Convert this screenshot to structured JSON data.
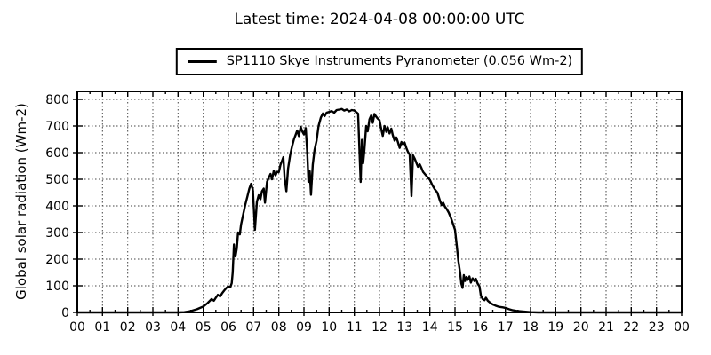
{
  "title": "Latest time: 2024-04-08 00:00:00 UTC",
  "legend": {
    "series_label": "SP1110 Skye Instruments Pyranometer (0.056 Wm-2)",
    "line_color": "#000000"
  },
  "axes": {
    "ylabel": "Global solar radiation (Wm-2)",
    "x_tick_labels": [
      "00",
      "01",
      "02",
      "03",
      "04",
      "05",
      "06",
      "07",
      "08",
      "09",
      "10",
      "11",
      "12",
      "13",
      "14",
      "15",
      "16",
      "17",
      "18",
      "19",
      "20",
      "21",
      "22",
      "23",
      "00"
    ],
    "y_tick_labels": [
      "0",
      "100",
      "200",
      "300",
      "400",
      "500",
      "600",
      "700",
      "800"
    ]
  },
  "chart_data": {
    "type": "line",
    "title": "Latest time: 2024-04-08 00:00:00 UTC",
    "xlabel": "",
    "ylabel": "Global solar radiation (Wm-2)",
    "xlim": [
      0,
      24
    ],
    "ylim": [
      0,
      830
    ],
    "x_unit": "hour (UTC)",
    "grid": "dotted",
    "legend_position": "top-center",
    "frame_color": "#000000",
    "grid_color": "#444444",
    "series": [
      {
        "name": "SP1110 Skye Instruments Pyranometer (0.056 Wm-2)",
        "color": "#000000",
        "linewidth": 2.4,
        "latest_value_wm2": 0.056,
        "points": [
          [
            0,
            0
          ],
          [
            0.5,
            0
          ],
          [
            1,
            0
          ],
          [
            1.5,
            0
          ],
          [
            2,
            0
          ],
          [
            2.5,
            0
          ],
          [
            3,
            0
          ],
          [
            3.5,
            0
          ],
          [
            4,
            0
          ],
          [
            4.25,
            1
          ],
          [
            4.5,
            5
          ],
          [
            4.75,
            12
          ],
          [
            5,
            22
          ],
          [
            5.17,
            35
          ],
          [
            5.33,
            50
          ],
          [
            5.42,
            44
          ],
          [
            5.5,
            55
          ],
          [
            5.58,
            66
          ],
          [
            5.67,
            60
          ],
          [
            5.75,
            72
          ],
          [
            5.83,
            82
          ],
          [
            5.92,
            92
          ],
          [
            6,
            97
          ],
          [
            6.08,
            96
          ],
          [
            6.13,
            110
          ],
          [
            6.17,
            150
          ],
          [
            6.22,
            255
          ],
          [
            6.28,
            210
          ],
          [
            6.33,
            240
          ],
          [
            6.38,
            300
          ],
          [
            6.45,
            293
          ],
          [
            6.5,
            330
          ],
          [
            6.58,
            365
          ],
          [
            6.67,
            405
          ],
          [
            6.75,
            435
          ],
          [
            6.83,
            465
          ],
          [
            6.9,
            483
          ],
          [
            6.97,
            460
          ],
          [
            7.05,
            310
          ],
          [
            7.13,
            415
          ],
          [
            7.2,
            440
          ],
          [
            7.27,
            425
          ],
          [
            7.33,
            455
          ],
          [
            7.4,
            465
          ],
          [
            7.45,
            412
          ],
          [
            7.53,
            490
          ],
          [
            7.6,
            505
          ],
          [
            7.67,
            520
          ],
          [
            7.73,
            500
          ],
          [
            7.8,
            532
          ],
          [
            7.87,
            515
          ],
          [
            7.93,
            528
          ],
          [
            8,
            527
          ],
          [
            8.07,
            555
          ],
          [
            8.13,
            570
          ],
          [
            8.18,
            583
          ],
          [
            8.23,
            505
          ],
          [
            8.3,
            455
          ],
          [
            8.37,
            540
          ],
          [
            8.45,
            590
          ],
          [
            8.53,
            625
          ],
          [
            8.6,
            650
          ],
          [
            8.67,
            667
          ],
          [
            8.73,
            683
          ],
          [
            8.8,
            662
          ],
          [
            8.87,
            697
          ],
          [
            8.93,
            680
          ],
          [
            9,
            668
          ],
          [
            9.07,
            692
          ],
          [
            9.13,
            600
          ],
          [
            9.18,
            490
          ],
          [
            9.23,
            530
          ],
          [
            9.28,
            442
          ],
          [
            9.35,
            555
          ],
          [
            9.42,
            610
          ],
          [
            9.5,
            645
          ],
          [
            9.58,
            700
          ],
          [
            9.67,
            732
          ],
          [
            9.75,
            747
          ],
          [
            9.82,
            737
          ],
          [
            9.9,
            750
          ],
          [
            10,
            753
          ],
          [
            10.1,
            756
          ],
          [
            10.2,
            750
          ],
          [
            10.3,
            760
          ],
          [
            10.42,
            762
          ],
          [
            10.5,
            764
          ],
          [
            10.6,
            758
          ],
          [
            10.7,
            762
          ],
          [
            10.8,
            755
          ],
          [
            10.9,
            760
          ],
          [
            11,
            758
          ],
          [
            11.08,
            752
          ],
          [
            11.15,
            746
          ],
          [
            11.25,
            490
          ],
          [
            11.3,
            648
          ],
          [
            11.35,
            560
          ],
          [
            11.4,
            610
          ],
          [
            11.47,
            700
          ],
          [
            11.53,
            680
          ],
          [
            11.6,
            725
          ],
          [
            11.67,
            740
          ],
          [
            11.73,
            712
          ],
          [
            11.8,
            745
          ],
          [
            11.87,
            735
          ],
          [
            11.93,
            728
          ],
          [
            12,
            722
          ],
          [
            12.07,
            688
          ],
          [
            12.13,
            663
          ],
          [
            12.2,
            700
          ],
          [
            12.27,
            678
          ],
          [
            12.33,
            695
          ],
          [
            12.4,
            672
          ],
          [
            12.47,
            690
          ],
          [
            12.53,
            665
          ],
          [
            12.6,
            645
          ],
          [
            12.67,
            657
          ],
          [
            12.73,
            640
          ],
          [
            12.8,
            618
          ],
          [
            12.87,
            640
          ],
          [
            12.93,
            632
          ],
          [
            13,
            637
          ],
          [
            13.07,
            617
          ],
          [
            13.13,
            603
          ],
          [
            13.2,
            592
          ],
          [
            13.27,
            437
          ],
          [
            13.33,
            590
          ],
          [
            13.4,
            577
          ],
          [
            13.47,
            560
          ],
          [
            13.53,
            547
          ],
          [
            13.6,
            556
          ],
          [
            13.67,
            542
          ],
          [
            13.73,
            528
          ],
          [
            13.8,
            520
          ],
          [
            13.87,
            512
          ],
          [
            13.93,
            505
          ],
          [
            14,
            498
          ],
          [
            14.1,
            478
          ],
          [
            14.2,
            462
          ],
          [
            14.3,
            450
          ],
          [
            14.4,
            420
          ],
          [
            14.47,
            403
          ],
          [
            14.53,
            412
          ],
          [
            14.6,
            397
          ],
          [
            14.67,
            388
          ],
          [
            14.75,
            375
          ],
          [
            14.83,
            357
          ],
          [
            14.9,
            338
          ],
          [
            15,
            310
          ],
          [
            15.07,
            250
          ],
          [
            15.13,
            195
          ],
          [
            15.2,
            150
          ],
          [
            15.25,
            108
          ],
          [
            15.3,
            92
          ],
          [
            15.35,
            140
          ],
          [
            15.4,
            118
          ],
          [
            15.45,
            133
          ],
          [
            15.5,
            122
          ],
          [
            15.57,
            135
          ],
          [
            15.63,
            112
          ],
          [
            15.7,
            128
          ],
          [
            15.77,
            118
          ],
          [
            15.83,
            126
          ],
          [
            15.9,
            108
          ],
          [
            15.97,
            98
          ],
          [
            16.03,
            62
          ],
          [
            16.1,
            50
          ],
          [
            16.17,
            46
          ],
          [
            16.23,
            55
          ],
          [
            16.3,
            44
          ],
          [
            16.4,
            36
          ],
          [
            16.5,
            30
          ],
          [
            16.6,
            26
          ],
          [
            16.75,
            21
          ],
          [
            16.9,
            19
          ],
          [
            17,
            17
          ],
          [
            17.15,
            12
          ],
          [
            17.3,
            8
          ],
          [
            17.5,
            5
          ],
          [
            17.75,
            3
          ],
          [
            18,
            1
          ],
          [
            18.3,
            0
          ],
          [
            19,
            0
          ],
          [
            20,
            0
          ],
          [
            21,
            0
          ],
          [
            22,
            0
          ],
          [
            23,
            0
          ],
          [
            24,
            0
          ]
        ]
      }
    ]
  }
}
